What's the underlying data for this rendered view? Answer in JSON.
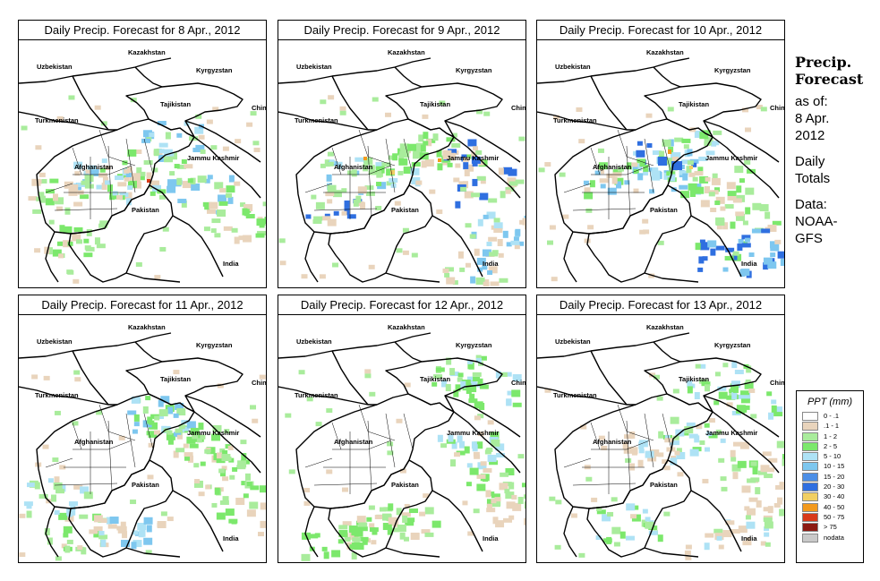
{
  "colors": {
    "c01": "#ffffff",
    "c1": "#e9d4bc",
    "c2": "#a9ec9c",
    "c5": "#7ce86c",
    "c10": "#aee2f5",
    "c15": "#7ec7ef",
    "c20": "#2f6fe0",
    "c30": "#f1cf62",
    "c40": "#f39a1e",
    "c50": "#d83a1a",
    "c75": "#8c1a12",
    "nodata": "#c9c9c9",
    "border": "#000000"
  },
  "panels": [
    {
      "title": "Daily Precip. Forecast for  8 Apr., 2012"
    },
    {
      "title": "Daily Precip. Forecast for  9 Apr., 2012"
    },
    {
      "title": "Daily Precip. Forecast for  10 Apr., 2012"
    },
    {
      "title": "Daily Precip. Forecast for  11 Apr., 2012"
    },
    {
      "title": "Daily Precip. Forecast for  12 Apr., 2012"
    },
    {
      "title": "Daily Precip. Forecast for  13 Apr., 2012"
    }
  ],
  "map_labels": {
    "kazakhstan": "Kazakhstan",
    "uzbekistan": "Uzbekistan",
    "kyrgyzstan": "Kyrgyzstan",
    "tajikistan": "Tajikistan",
    "turkmenistan": "Turkmenistan",
    "china": "China",
    "afghanistan": "Afghanistan",
    "jammu": "Jammu Kashmir",
    "pakistan": "Pakistan",
    "india": "India"
  },
  "sidebar": {
    "heading1": "Precip.",
    "heading2": "Forecast",
    "asof": "as of:",
    "date1": "8 Apr.",
    "date2": "2012",
    "daily": "Daily",
    "totals": "Totals",
    "data_label": "Data:",
    "source1": "NOAA-",
    "source2": "GFS"
  },
  "legend": {
    "title": "PPT (mm)",
    "items": [
      {
        "label": "0 - .1",
        "color": "#ffffff"
      },
      {
        "label": ".1 - 1",
        "color": "#e9d4bc"
      },
      {
        "label": "1 - 2",
        "color": "#a9ec9c"
      },
      {
        "label": "2 - 5",
        "color": "#7ce86c"
      },
      {
        "label": "5 - 10",
        "color": "#aee2f5"
      },
      {
        "label": "10 - 15",
        "color": "#7ec7ef"
      },
      {
        "label": "15 - 20",
        "color": "#4d8fe6"
      },
      {
        "label": "20 - 30",
        "color": "#2f6fe0"
      },
      {
        "label": "30 - 40",
        "color": "#f1cf62"
      },
      {
        "label": "40 - 50",
        "color": "#f39a1e"
      },
      {
        "label": "50 - 75",
        "color": "#d83a1a"
      },
      {
        "label": "> 75",
        "color": "#8c1a12"
      },
      {
        "label": "nodata",
        "color": "#c9c9c9"
      }
    ]
  }
}
